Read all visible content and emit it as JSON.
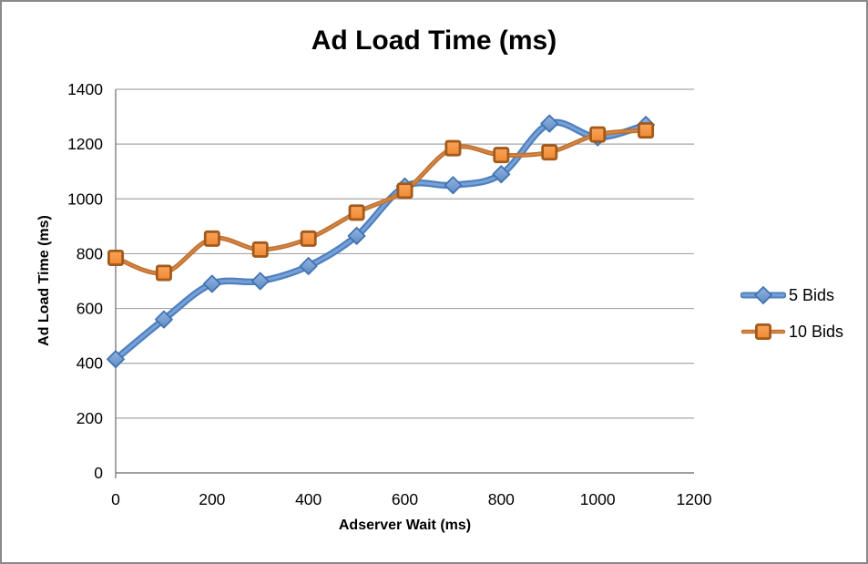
{
  "canvas": {
    "background": "#FFFFFF",
    "border_color": "#8A8A8A"
  },
  "chart_data": {
    "type": "line",
    "title": "Ad Load Time (ms)",
    "xlabel": "Adserver Wait (ms)",
    "ylabel": "Ad Load Time (ms)",
    "x": [
      0,
      100,
      200,
      300,
      400,
      500,
      600,
      700,
      800,
      900,
      1000,
      1100
    ],
    "series": [
      {
        "name": "5 Bids",
        "marker": "diamond",
        "line_color": "#4F81BD",
        "line_highlight": "#7FA7DE",
        "line_width": 7.5,
        "highlight_width": 3,
        "marker_fill_top": "#92B4E2",
        "marker_fill_bottom": "#5E8CC4",
        "marker_stroke": "#4173AE",
        "values": [
          415,
          560,
          690,
          700,
          755,
          865,
          1045,
          1050,
          1090,
          1275,
          1225,
          1270
        ]
      },
      {
        "name": "10 Bids",
        "marker": "square",
        "line_color": "#BF7030",
        "line_highlight": "#D78A45",
        "line_width": 5,
        "highlight_width": 2,
        "marker_fill_top": "#F9A45B",
        "marker_fill_bottom": "#F08A31",
        "marker_stroke": "#A25A1C",
        "values": [
          785,
          730,
          855,
          815,
          855,
          950,
          1030,
          1185,
          1160,
          1170,
          1235,
          1250
        ]
      }
    ],
    "xlim": [
      0,
      1200
    ],
    "ylim": [
      0,
      1400
    ],
    "x_ticks": [
      0,
      200,
      400,
      600,
      800,
      1000,
      1200
    ],
    "y_ticks": [
      0,
      200,
      400,
      600,
      800,
      1000,
      1200,
      1400
    ],
    "grid": {
      "horizontal": true,
      "vertical": false,
      "color": "#A6A6A6",
      "axis_color": "#7F7F7F"
    },
    "legend_position": "center-right",
    "smooth_lines": true
  }
}
